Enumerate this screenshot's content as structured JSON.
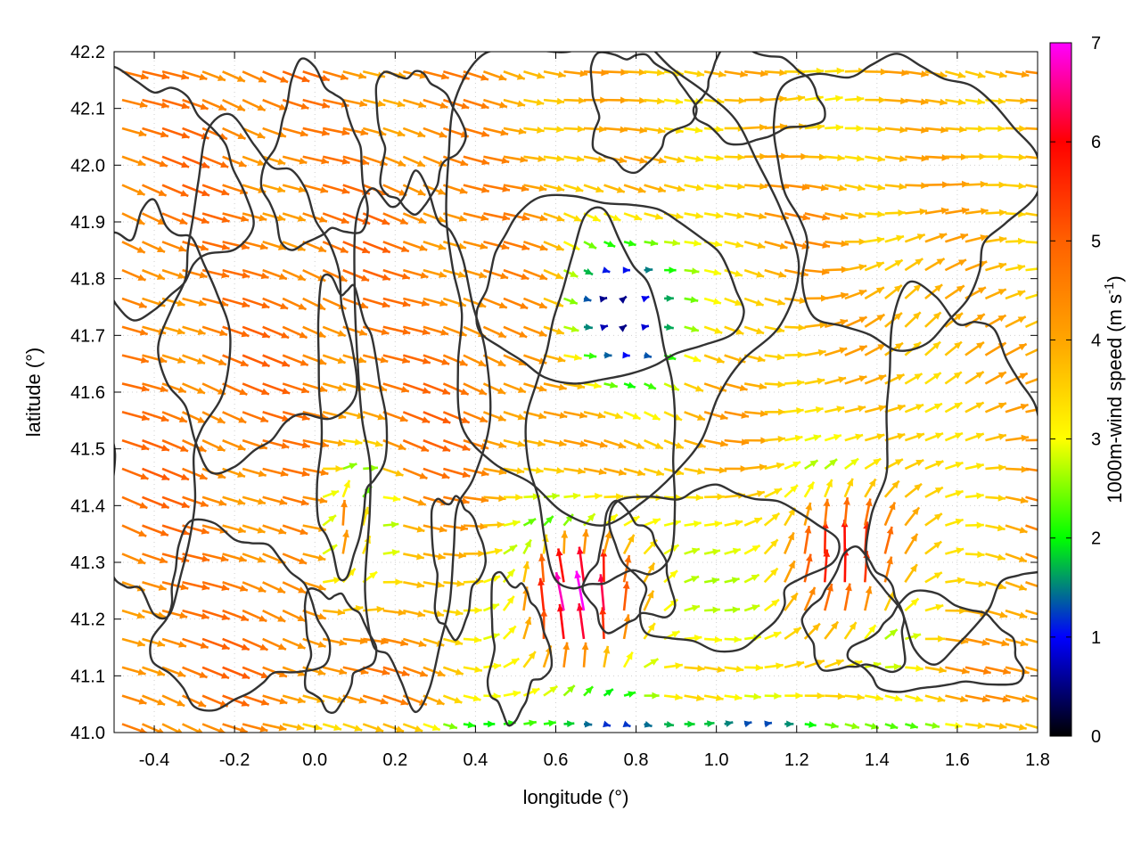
{
  "chart_data": {
    "type": "vector-field",
    "xlabel": "longitude (°)",
    "ylabel": "latitude (°)",
    "xlim": [
      -0.5,
      1.8
    ],
    "ylim": [
      41.0,
      42.2
    ],
    "x_ticks": [
      -0.4,
      -0.2,
      0.0,
      0.2,
      0.4,
      0.6,
      0.8,
      1.0,
      1.2,
      1.4,
      1.6,
      1.8
    ],
    "x_tick_labels": [
      "-0.4",
      "-0.2",
      "0.0",
      "0.2",
      "0.4",
      "0.6",
      "0.8",
      "1.0",
      "1.2",
      "1.4",
      "1.6",
      "1.8"
    ],
    "y_ticks": [
      41.0,
      41.1,
      41.2,
      41.3,
      41.4,
      41.5,
      41.6,
      41.7,
      41.8,
      41.9,
      42.0,
      42.1,
      42.2
    ],
    "y_tick_labels": [
      "41.0",
      "41.1",
      "41.2",
      "41.3",
      "41.4",
      "41.5",
      "41.6",
      "41.7",
      "41.8",
      "41.9",
      "42.0",
      "42.1",
      "42.2"
    ],
    "grid": true,
    "colorbar": {
      "label_main": "1000m-wind speed (m s",
      "label_sup": "-1",
      "label_end": ")",
      "range": [
        0,
        7
      ],
      "ticks": [
        "0",
        "1",
        "2",
        "3",
        "4",
        "5",
        "6",
        "7"
      ],
      "palette": [
        "#000000",
        "#0000ff",
        "#00ff00",
        "#ffff00",
        "#ffa500",
        "#ff6000",
        "#ff0000",
        "#ff00ff"
      ]
    },
    "contour_color": "#333333",
    "wind_regions": [
      {
        "region": "west and north-west",
        "direction": "from north-west",
        "speed": 4.6
      },
      {
        "region": "central bay (41.55–41.95 N, 0.55–1.0 E)",
        "direction": "variable",
        "speed": 0.8
      },
      {
        "region": "north-east (41.9–42.2 N, 0.4–1.8 E)",
        "direction": "from west",
        "speed": 3.0
      },
      {
        "region": "south-central (41.1–41.4 N, 0.4–0.9 E)",
        "direction": "from south",
        "speed": 6.8
      },
      {
        "region": "south-east (41.2–41.5 N, 1.1–1.5 E)",
        "direction": "from south-south-west",
        "speed": 5.8
      },
      {
        "region": "east (41.5–41.8 N, 1.2–1.8 E)",
        "direction": "from south-west",
        "speed": 4.2
      },
      {
        "region": "southern coast (41.0–41.05 N)",
        "direction": "from west",
        "speed": 1.5
      }
    ]
  }
}
